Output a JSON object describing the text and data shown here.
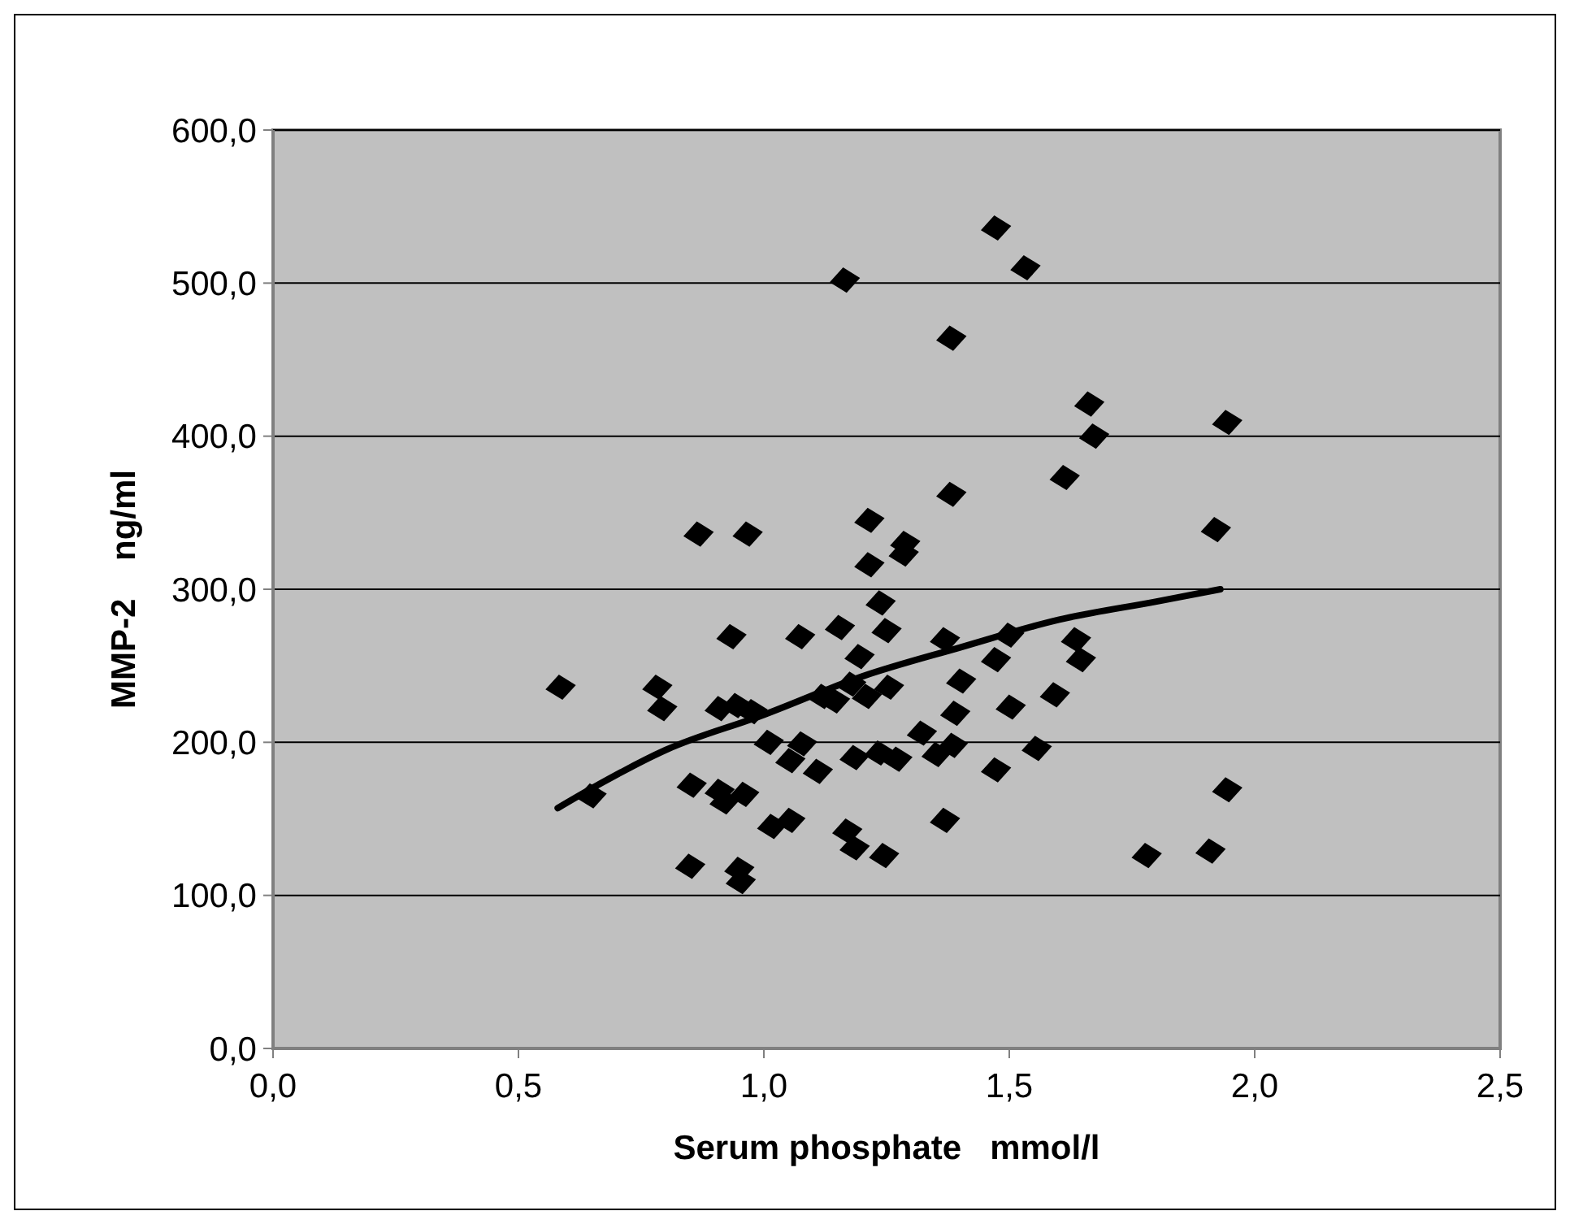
{
  "chart_data": {
    "type": "scatter",
    "xlabel": "Serum phosphate   mmol/l",
    "ylabel": "MMP-2    ng/ml",
    "xlim": [
      0,
      2.5
    ],
    "ylim": [
      0,
      600
    ],
    "xticks": [
      {
        "value": 0,
        "label": "0,0"
      },
      {
        "value": 0.5,
        "label": "0,5"
      },
      {
        "value": 1,
        "label": "1,0"
      },
      {
        "value": 1.5,
        "label": "1,5"
      },
      {
        "value": 2,
        "label": "2,0"
      },
      {
        "value": 2.5,
        "label": "2,5"
      }
    ],
    "yticks": [
      {
        "value": 0,
        "label": "0,0"
      },
      {
        "value": 100,
        "label": "100,0"
      },
      {
        "value": 200,
        "label": "200,0"
      },
      {
        "value": 300,
        "label": "300,0"
      },
      {
        "value": 400,
        "label": "400,0"
      },
      {
        "value": 500,
        "label": "500,0"
      },
      {
        "value": 600,
        "label": "600,0"
      }
    ],
    "grid": "y",
    "marker": "diamond",
    "series": [
      {
        "color": "#000000",
        "x": [
          0.867,
          0.967,
          0.586,
          0.783,
          0.793,
          0.934,
          1.074,
          1.155,
          1.215,
          1.215,
          1.238,
          1.25,
          1.195,
          0.91,
          0.944,
          0.977,
          1.145,
          1.178,
          1.21,
          0.649,
          0.853,
          0.91,
          0.92,
          0.96,
          1.01,
          1.078,
          1.054,
          1.11,
          1.017,
          1.054,
          1.17,
          1.185,
          1.245,
          0.85,
          0.95,
          0.953,
          1.473,
          1.533,
          1.165,
          1.382,
          1.663,
          1.673,
          1.944,
          1.382,
          1.613,
          1.921,
          1.288,
          1.285,
          1.369,
          1.473,
          1.5,
          1.636,
          1.646,
          1.402,
          1.503,
          1.593,
          1.39,
          1.322,
          1.385,
          1.352,
          1.473,
          1.556,
          1.185,
          1.235,
          1.272,
          1.369,
          1.78,
          1.91,
          1.944,
          1.255,
          1.12
        ],
        "values": [
          336,
          336,
          236,
          236,
          222,
          269,
          269,
          275,
          345,
          316,
          291,
          273,
          256,
          222,
          224,
          220,
          227,
          238,
          230,
          165,
          172,
          168,
          161,
          166,
          200,
          199,
          188,
          181,
          145,
          149,
          142,
          131,
          126,
          119,
          117,
          109,
          536,
          510,
          502,
          464,
          421,
          400,
          409,
          362,
          373,
          339,
          330,
          323,
          267,
          254,
          270,
          267,
          254,
          240,
          223,
          231,
          219,
          206,
          198,
          192,
          182,
          196,
          190,
          193,
          189,
          149,
          126,
          129,
          169,
          236,
          230
        ]
      },
      {
        "type": "line",
        "color": "#000000",
        "marker": "none",
        "line_style": "solid",
        "x": [
          0.58,
          0.65,
          0.8,
          1.0,
          1.2,
          1.4,
          1.6,
          1.8,
          1.93
        ],
        "values": [
          157,
          170,
          195,
          218,
          243,
          262,
          280,
          292,
          300
        ]
      }
    ]
  }
}
